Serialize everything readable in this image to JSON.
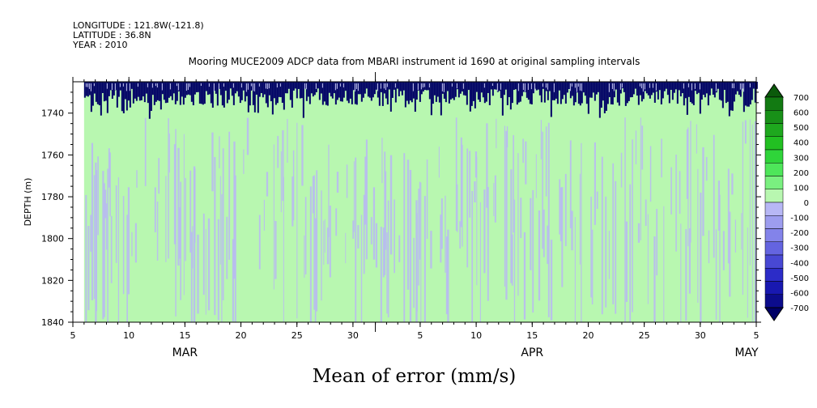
{
  "header": {
    "longitude": "LONGITUDE : 121.8W(-121.8)",
    "latitude": "LATITUDE : 36.8N",
    "year": "YEAR : 2010",
    "title": "Mooring MUCE2009 ADCP data from MBARI instrument id 1690 at original sampling intervals"
  },
  "footer": {
    "variable_title": "Mean of error (mm/s)"
  },
  "chart_data": {
    "type": "heatmap",
    "ylabel": "DEPTH (m)",
    "xlabel": "",
    "ylim": [
      1725,
      1840
    ],
    "y_inverted": true,
    "y_ticks": [
      1740,
      1760,
      1780,
      1800,
      1820,
      1840
    ],
    "x_start": "2010-03-05",
    "x_end": "2010-05-05",
    "x_tick_labels": [
      "5",
      "10",
      "15",
      "20",
      "25",
      "30",
      "5",
      "10",
      "15",
      "20",
      "25",
      "30",
      "5"
    ],
    "x_tick_dates": [
      "2010-03-05",
      "2010-03-10",
      "2010-03-15",
      "2010-03-20",
      "2010-03-25",
      "2010-03-30",
      "2010-04-05",
      "2010-04-10",
      "2010-04-15",
      "2010-04-20",
      "2010-04-25",
      "2010-04-30",
      "2010-05-05"
    ],
    "month_labels": [
      "MAR",
      "APR",
      "MAY"
    ],
    "month_label_dates": [
      "2010-03-15",
      "2010-04-15",
      "2010-05-05"
    ],
    "colorbar": {
      "levels": [
        700,
        600,
        500,
        400,
        300,
        200,
        100,
        0,
        -100,
        -200,
        -300,
        -400,
        -500,
        -600,
        -700
      ],
      "colors": [
        "#0b5a0b",
        "#127a12",
        "#189018",
        "#1ea81e",
        "#22c022",
        "#2fd43a",
        "#4ee65a",
        "#7af080",
        "#b8f7b0",
        "#b7b7f5",
        "#9d9def",
        "#8383ea",
        "#6464e0",
        "#4848d4",
        "#2c2cc8",
        "#1818b0",
        "#0c0c8c",
        "#000066"
      ]
    },
    "fields": {
      "data_start_date": "2010-03-06",
      "data_end_date": "2010-05-05",
      "near_surface_top_depth": 1725,
      "near_surface_band_bottom_depth": 1742,
      "near_surface_value": -700,
      "dominant_values": [
        0,
        100,
        -100
      ]
    }
  }
}
